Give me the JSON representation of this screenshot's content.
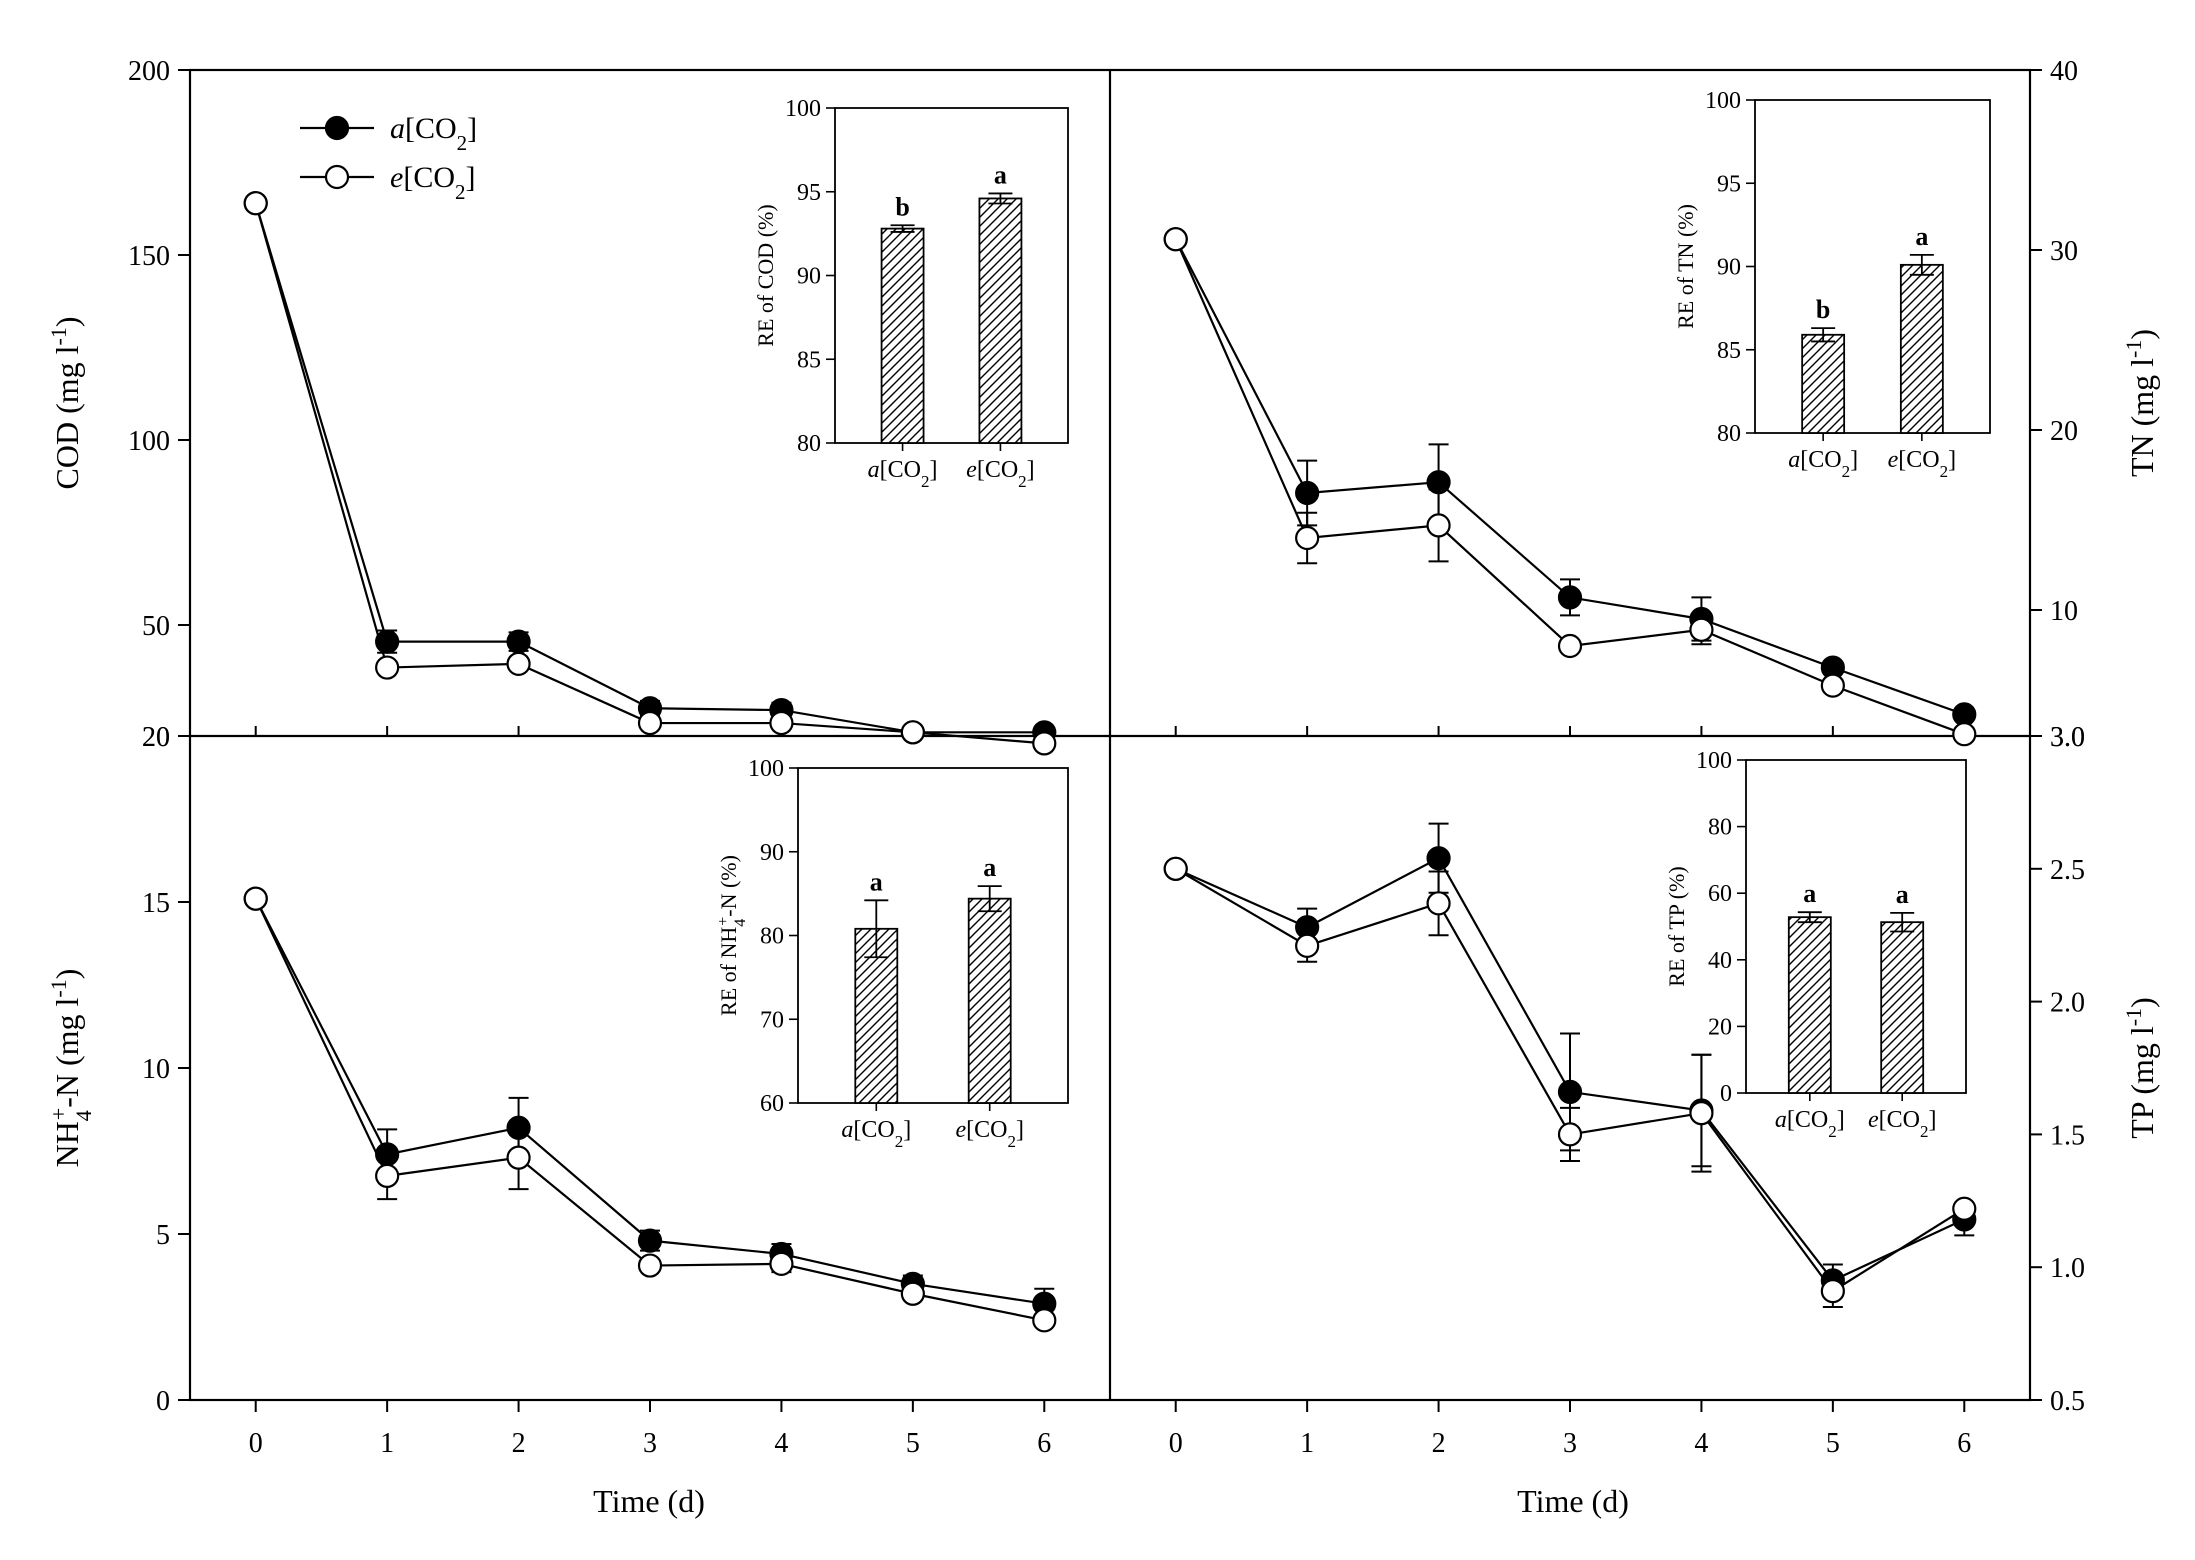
{
  "legend": {
    "series": [
      {
        "prefix": "a",
        "main": "[CO",
        "sub": "2",
        "suffix": "]",
        "fill": "#000000"
      },
      {
        "prefix": "e",
        "main": "[CO",
        "sub": "2",
        "suffix": "]",
        "fill": "#ffffff"
      }
    ]
  },
  "xlabel": "Time (d)",
  "chart_data": [
    {
      "id": "cod",
      "type": "line",
      "ylabel": "COD (mg l-1)",
      "ylabel_parts": {
        "main": "COD (mg l",
        "sup": "-1",
        "end": ")"
      },
      "x": [
        0,
        1,
        2,
        3,
        4,
        5,
        6
      ],
      "xlim": [
        -0.5,
        6.5
      ],
      "ylim": [
        20,
        200
      ],
      "yticks": [
        20,
        50,
        100,
        150,
        200
      ],
      "series": [
        {
          "name": "a[CO2]",
          "values": [
            164,
            45.5,
            45.5,
            27.5,
            27,
            21,
            21
          ],
          "err": [
            0,
            3,
            2.5,
            2,
            2,
            0,
            0
          ]
        },
        {
          "name": "e[CO2]",
          "values": [
            164,
            38.5,
            39.5,
            23.5,
            23.5,
            21,
            18
          ],
          "err": [
            0,
            0,
            0,
            0,
            0,
            0,
            0
          ]
        }
      ],
      "inset": {
        "type": "bar",
        "ylabel": "RE of COD (%)",
        "ylim": [
          80,
          100
        ],
        "yticks": [
          80,
          85,
          90,
          95,
          100
        ],
        "categories": [
          "a[CO2]",
          "e[CO2]"
        ],
        "values": [
          92.8,
          94.6
        ],
        "err": [
          0.2,
          0.3
        ],
        "letters": [
          "b",
          "a"
        ]
      }
    },
    {
      "id": "tn",
      "type": "line",
      "ylabel": "TN (mg l-1)",
      "ylabel_parts": {
        "main": "TN (mg l",
        "sup": "-1",
        "end": ")"
      },
      "x": [
        0,
        1,
        2,
        3,
        4,
        5,
        6
      ],
      "xlim": [
        -0.5,
        6.5
      ],
      "ylim": [
        3.0,
        40
      ],
      "yticks": [
        3.0,
        10,
        20,
        30,
        40
      ],
      "ytick_labels": [
        "3.0",
        "10",
        "20",
        "30",
        "40"
      ],
      "series": [
        {
          "name": "a[CO2]",
          "values": [
            30.6,
            16.5,
            17.1,
            10.7,
            9.5,
            6.8,
            4.2
          ],
          "err": [
            0,
            1.8,
            2.1,
            1.0,
            1.2,
            0,
            0
          ]
        },
        {
          "name": "e[CO2]",
          "values": [
            30.6,
            14.0,
            14.7,
            8.0,
            8.9,
            5.8,
            3.1
          ],
          "err": [
            0,
            1.4,
            2.0,
            0,
            0.8,
            0,
            0
          ]
        }
      ],
      "inset": {
        "type": "bar",
        "ylabel": "RE of TN (%)",
        "ylim": [
          80,
          100
        ],
        "yticks": [
          80,
          85,
          90,
          95,
          100
        ],
        "categories": [
          "a[CO2]",
          "e[CO2]"
        ],
        "values": [
          85.9,
          90.1
        ],
        "err": [
          0.4,
          0.6
        ],
        "letters": [
          "b",
          "a"
        ]
      }
    },
    {
      "id": "nh4",
      "type": "line",
      "ylabel": "NH4+-N (mg l-1)",
      "ylabel_parts": {
        "main": "NH",
        "sub": "4",
        "sup1": "+",
        "mid": "-N (mg l",
        "sup": "-1",
        "end": ")"
      },
      "x": [
        0,
        1,
        2,
        3,
        4,
        5,
        6
      ],
      "xlim": [
        -0.5,
        6.5
      ],
      "ylim": [
        0,
        20
      ],
      "yticks": [
        0,
        5,
        10,
        15,
        20
      ],
      "series": [
        {
          "name": "a[CO2]",
          "values": [
            15.1,
            7.4,
            8.2,
            4.8,
            4.4,
            3.5,
            2.9
          ],
          "err": [
            0,
            0.75,
            0.9,
            0.3,
            0.3,
            0.25,
            0.45
          ]
        },
        {
          "name": "e[CO2]",
          "values": [
            15.1,
            6.75,
            7.3,
            4.05,
            4.1,
            3.2,
            2.4
          ],
          "err": [
            0,
            0.7,
            0.95,
            0,
            0.25,
            0,
            0
          ]
        }
      ],
      "inset": {
        "type": "bar",
        "ylabel": "RE of NH4+-N (%)",
        "ylabel_parts": {
          "main": "RE of NH",
          "sub": "4",
          "sup1": "+",
          "end": "-N (%)"
        },
        "ylim": [
          60,
          100
        ],
        "yticks": [
          60,
          70,
          80,
          90,
          100
        ],
        "categories": [
          "a[CO2]",
          "e[CO2]"
        ],
        "values": [
          80.8,
          84.4
        ],
        "err": [
          3.4,
          1.5
        ],
        "letters": [
          "a",
          "a"
        ]
      }
    },
    {
      "id": "tp",
      "type": "line",
      "ylabel": "TP (mg l-1)",
      "ylabel_parts": {
        "main": "TP (mg l",
        "sup": "-1",
        "end": ")"
      },
      "x": [
        0,
        1,
        2,
        3,
        4,
        5,
        6
      ],
      "xlim": [
        -0.5,
        6.5
      ],
      "ylim": [
        0.5,
        3.0
      ],
      "yticks": [
        0.5,
        1.0,
        1.5,
        2.0,
        2.5,
        3.0
      ],
      "ytick_labels": [
        "0.5",
        "1.0",
        "1.5",
        "2.0",
        "2.5",
        "3.0"
      ],
      "series": [
        {
          "name": "a[CO2]",
          "values": [
            2.5,
            2.28,
            2.54,
            1.66,
            1.59,
            0.95,
            1.18
          ],
          "err": [
            0,
            0.07,
            0.13,
            0.22,
            0.21,
            0.06,
            0.06
          ]
        },
        {
          "name": "e[CO2]",
          "values": [
            2.5,
            2.21,
            2.37,
            1.5,
            1.58,
            0.91,
            1.22
          ],
          "err": [
            0,
            0.06,
            0.12,
            0.1,
            0.22,
            0.06,
            0.0
          ]
        }
      ],
      "inset": {
        "type": "bar",
        "ylabel": "RE of TP (%)",
        "ylim": [
          0,
          100
        ],
        "yticks": [
          0,
          20,
          40,
          60,
          80,
          100
        ],
        "categories": [
          "a[CO2]",
          "e[CO2]"
        ],
        "values": [
          52.8,
          51.3
        ],
        "err": [
          1.5,
          2.8
        ],
        "letters": [
          "a",
          "a"
        ]
      }
    }
  ]
}
